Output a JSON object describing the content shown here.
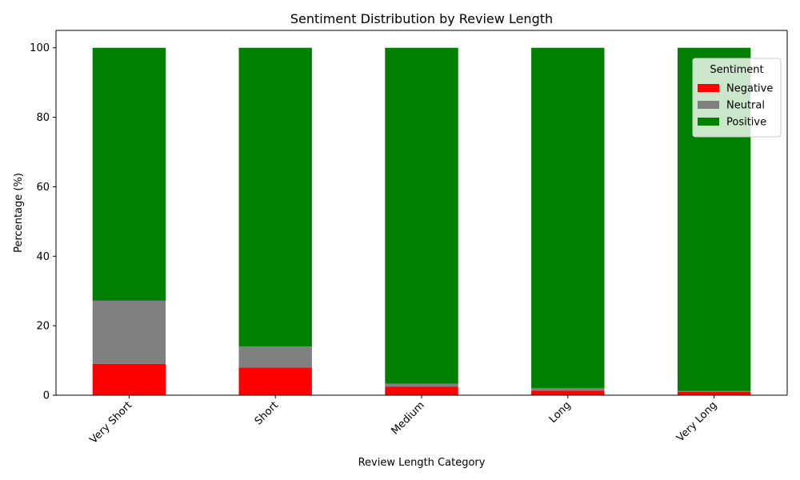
{
  "chart_data": {
    "type": "bar",
    "stacked": true,
    "title": "Sentiment Distribution by Review Length",
    "xlabel": "Review Length Category",
    "ylabel": "Percentage (%)",
    "categories": [
      "Very Short",
      "Short",
      "Medium",
      "Long",
      "Very Long"
    ],
    "yticks": [
      0,
      20,
      40,
      60,
      80,
      100
    ],
    "ylim": [
      0,
      105
    ],
    "grid": false,
    "legend": {
      "title": "Sentiment",
      "position": "top-right"
    },
    "series": [
      {
        "name": "Negative",
        "color": "#ff0000",
        "values": [
          9.0,
          8.0,
          2.5,
          1.3,
          1.0
        ]
      },
      {
        "name": "Neutral",
        "color": "#808080",
        "values": [
          18.2,
          6.0,
          0.8,
          0.7,
          0.2
        ]
      },
      {
        "name": "Positive",
        "color": "#008000",
        "values": [
          72.8,
          86.0,
          96.7,
          98.0,
          98.8
        ]
      }
    ]
  }
}
